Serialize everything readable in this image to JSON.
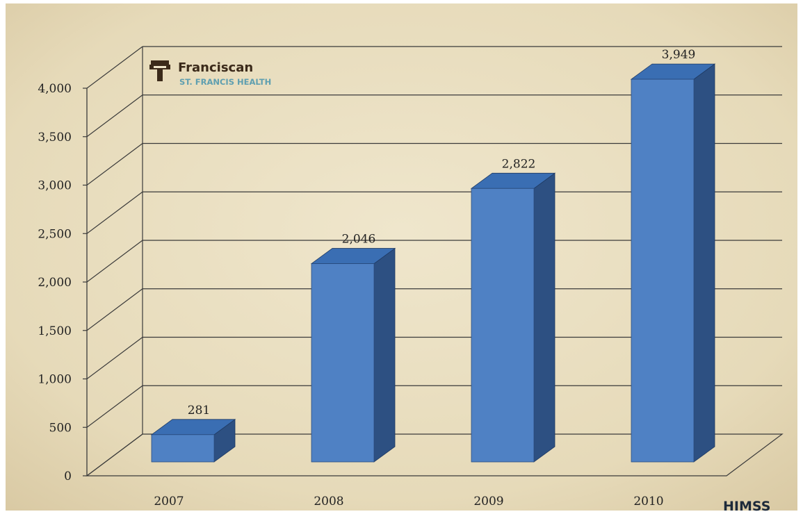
{
  "logo": {
    "name": "Franciscan",
    "subtitle": "ST. FRANCIS HEALTH"
  },
  "corner_mark": "HIMSS",
  "colors": {
    "background": "#eee4c9",
    "bar_front": "#4f81c4",
    "bar_side": "#2d5082",
    "bar_top": "#3a6eb3",
    "grid": "#3a3a3a"
  },
  "chart_data": {
    "type": "bar",
    "style": "3d",
    "categories": [
      "2007",
      "2008",
      "2009",
      "2010"
    ],
    "values": [
      281,
      2046,
      2822,
      3949
    ],
    "data_labels": [
      "281",
      "2,046",
      "2,822",
      "3,949"
    ],
    "y_ticks": [
      0,
      500,
      1000,
      1500,
      2000,
      2500,
      3000,
      3500,
      4000
    ],
    "y_tick_labels": [
      "0",
      "500",
      "1,000",
      "1,500",
      "2,000",
      "2,500",
      "3,000",
      "3,500",
      "4,000"
    ],
    "ylim": [
      0,
      4000
    ],
    "grid": true,
    "legend": "none",
    "title": "",
    "xlabel": "",
    "ylabel": ""
  }
}
